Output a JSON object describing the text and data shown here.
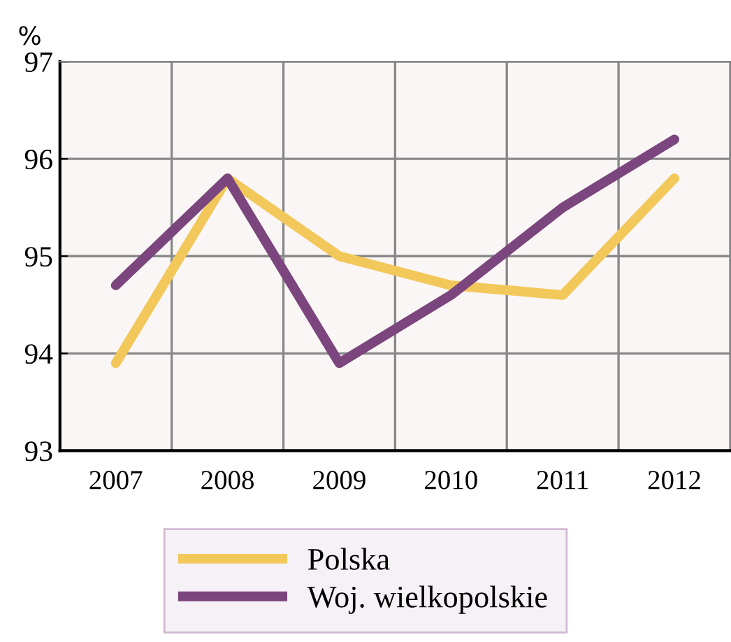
{
  "chart_data": {
    "type": "line",
    "ylabel": "%",
    "categories": [
      "2007",
      "2008",
      "2009",
      "2010",
      "2011",
      "2012"
    ],
    "series": [
      {
        "name": "Polska",
        "color": "#f2c85a",
        "values": [
          93.9,
          95.8,
          95.0,
          94.7,
          94.6,
          95.8
        ]
      },
      {
        "name": "Woj. wielkopolskie",
        "color": "#7b457d",
        "values": [
          94.7,
          95.8,
          93.9,
          94.6,
          95.5,
          96.2
        ]
      }
    ],
    "ylim": [
      93,
      97
    ],
    "yticks": [
      93,
      94,
      95,
      96,
      97
    ],
    "grid": true,
    "legend": "bottom",
    "line_style": "solid",
    "marker": "none"
  }
}
